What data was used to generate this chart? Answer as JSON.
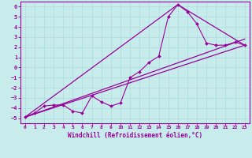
{
  "xlabel": "Windchill (Refroidissement éolien,°C)",
  "bg_color": "#c8ecec",
  "line_color": "#990099",
  "grid_color": "#b0dede",
  "xlim": [
    -0.5,
    23.5
  ],
  "ylim": [
    -5.5,
    6.5
  ],
  "xticks": [
    0,
    1,
    2,
    3,
    4,
    5,
    6,
    7,
    8,
    9,
    10,
    11,
    12,
    13,
    14,
    15,
    16,
    17,
    18,
    19,
    20,
    21,
    22,
    23
  ],
  "yticks": [
    -5,
    -4,
    -3,
    -2,
    -1,
    0,
    1,
    2,
    3,
    4,
    5,
    6
  ],
  "line1_x": [
    0,
    1,
    2,
    3,
    4,
    5,
    6,
    7,
    8,
    9,
    10,
    11,
    12,
    13,
    14,
    15,
    16,
    17,
    18,
    19,
    20,
    21,
    22,
    23
  ],
  "line1_y": [
    -4.9,
    -4.5,
    -3.8,
    -3.7,
    -3.7,
    -4.3,
    -4.5,
    -2.8,
    -3.4,
    -3.8,
    -3.5,
    -1.0,
    -0.4,
    0.5,
    1.1,
    5.0,
    6.2,
    5.5,
    4.3,
    2.4,
    2.2,
    2.2,
    2.5,
    2.2
  ],
  "line2_x": [
    0,
    23
  ],
  "line2_y": [
    -4.9,
    2.2
  ],
  "line3_x": [
    0,
    16,
    23
  ],
  "line3_y": [
    -4.9,
    6.2,
    2.2
  ],
  "line4_x": [
    0,
    23
  ],
  "line4_y": [
    -4.9,
    2.8
  ]
}
